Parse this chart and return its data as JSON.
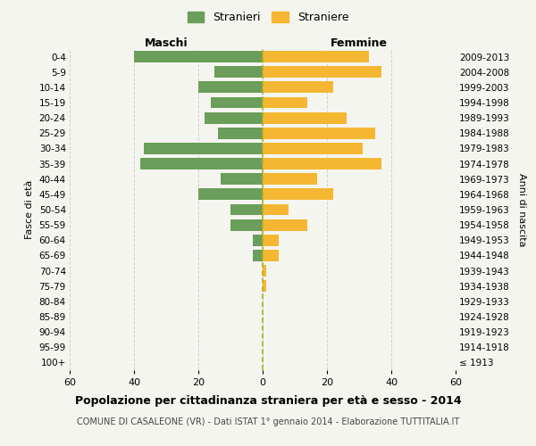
{
  "age_groups": [
    "100+",
    "95-99",
    "90-94",
    "85-89",
    "80-84",
    "75-79",
    "70-74",
    "65-69",
    "60-64",
    "55-59",
    "50-54",
    "45-49",
    "40-44",
    "35-39",
    "30-34",
    "25-29",
    "20-24",
    "15-19",
    "10-14",
    "5-9",
    "0-4"
  ],
  "birth_years": [
    "≤ 1913",
    "1914-1918",
    "1919-1923",
    "1924-1928",
    "1929-1933",
    "1934-1938",
    "1939-1943",
    "1944-1948",
    "1949-1953",
    "1954-1958",
    "1959-1963",
    "1964-1968",
    "1969-1973",
    "1974-1978",
    "1979-1983",
    "1984-1988",
    "1989-1993",
    "1994-1998",
    "1999-2003",
    "2004-2008",
    "2009-2013"
  ],
  "males": [
    0,
    0,
    0,
    0,
    0,
    0,
    0,
    3,
    3,
    10,
    10,
    20,
    13,
    38,
    37,
    14,
    18,
    16,
    20,
    15,
    40
  ],
  "females": [
    0,
    0,
    0,
    0,
    0,
    1,
    1,
    5,
    5,
    14,
    8,
    22,
    17,
    37,
    31,
    35,
    26,
    14,
    22,
    37,
    33
  ],
  "male_color": "#6a9e5a",
  "female_color": "#f5b731",
  "background_color": "#f5f5f0",
  "grid_color": "#cccccc",
  "title": "Popolazione per cittadinanza straniera per età e sesso - 2014",
  "subtitle": "COMUNE DI CASALEONE (VR) - Dati ISTAT 1° gennaio 2014 - Elaborazione TUTTITALIA.IT",
  "xlabel_left": "Maschi",
  "xlabel_right": "Femmine",
  "ylabel_left": "Fasce di età",
  "ylabel_right": "Anni di nascita",
  "xlim": 60,
  "legend_male": "Stranieri",
  "legend_female": "Straniere",
  "dashed_line_color": "#b0b020",
  "bar_height": 0.75
}
